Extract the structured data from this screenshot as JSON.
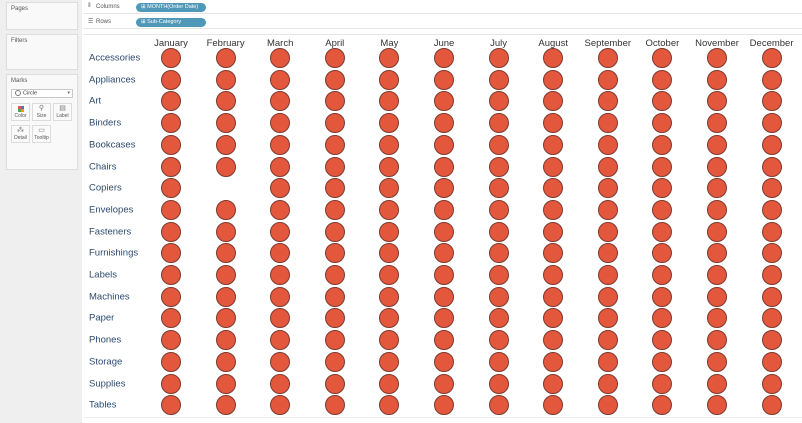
{
  "sidebar": {
    "pages_title": "Pages",
    "filters_title": "Filters",
    "marks_title": "Marks",
    "mark_type": "Circle",
    "buttons": [
      {
        "label": "Color",
        "icon": "color-icon"
      },
      {
        "label": "Size",
        "icon": "size-icon"
      },
      {
        "label": "Label",
        "icon": "label-icon"
      },
      {
        "label": "Detail",
        "icon": "detail-icon"
      },
      {
        "label": "Tooltip",
        "icon": "tooltip-icon"
      }
    ]
  },
  "shelves": {
    "columns_label": "Columns",
    "columns_pill": "MONTH(Order Date)",
    "rows_label": "Rows",
    "rows_pill": "Sub-Category"
  },
  "colors": {
    "mark": "#e3573d",
    "pill": "#4f98b8"
  },
  "chart_data": {
    "type": "scatter",
    "mark": "circle",
    "columns": [
      "January",
      "February",
      "March",
      "April",
      "May",
      "June",
      "July",
      "August",
      "September",
      "October",
      "November",
      "December"
    ],
    "rows": [
      "Accessories",
      "Appliances",
      "Art",
      "Binders",
      "Bookcases",
      "Chairs",
      "Copiers",
      "Envelopes",
      "Fasteners",
      "Furnishings",
      "Labels",
      "Machines",
      "Paper",
      "Phones",
      "Storage",
      "Supplies",
      "Tables"
    ],
    "missing": [
      {
        "row": "Copiers",
        "column": "February"
      }
    ]
  }
}
